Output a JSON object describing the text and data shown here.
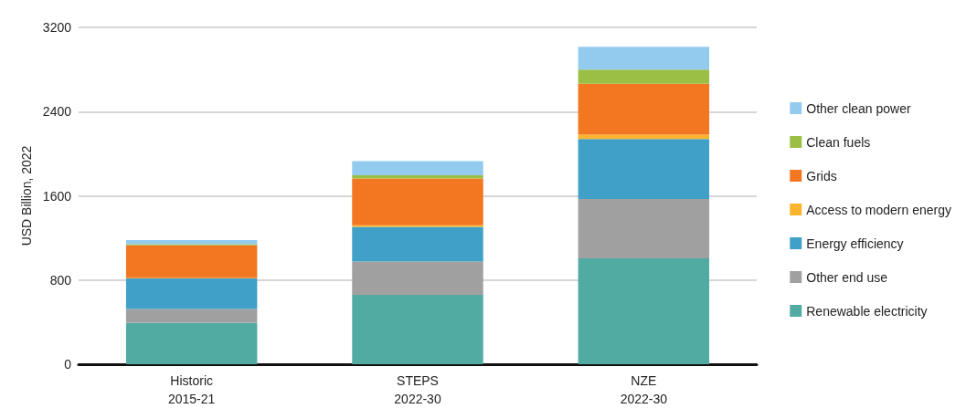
{
  "chart_data": {
    "type": "bar",
    "stacked": true,
    "ylabel": "USD Billion, 2022",
    "categories": [
      "Historic\n2015-21",
      "STEPS\n2022-30",
      "NZE\n2022-30"
    ],
    "series": [
      {
        "name": "Renewable electricity",
        "color": "#52aba2",
        "values": [
          395,
          660,
          1005
        ]
      },
      {
        "name": "Other end use",
        "color": "#a0a0a0",
        "values": [
          130,
          315,
          565
        ]
      },
      {
        "name": "Energy efficiency",
        "color": "#40a0c8",
        "values": [
          290,
          330,
          570
        ]
      },
      {
        "name": "Access to modern energy",
        "color": "#fbb52d",
        "values": [
          5,
          15,
          40
        ]
      },
      {
        "name": "Grids",
        "color": "#f37721",
        "values": [
          310,
          445,
          485
        ]
      },
      {
        "name": "Clean fuels",
        "color": "#9bbf44",
        "values": [
          10,
          30,
          135
        ]
      },
      {
        "name": "Other clean power",
        "color": "#93cbef",
        "values": [
          40,
          135,
          215
        ]
      }
    ],
    "ylim": [
      0,
      3200
    ],
    "yticks": [
      0,
      800,
      1600,
      2400,
      3200
    ],
    "grid": "y",
    "legend": "right"
  }
}
